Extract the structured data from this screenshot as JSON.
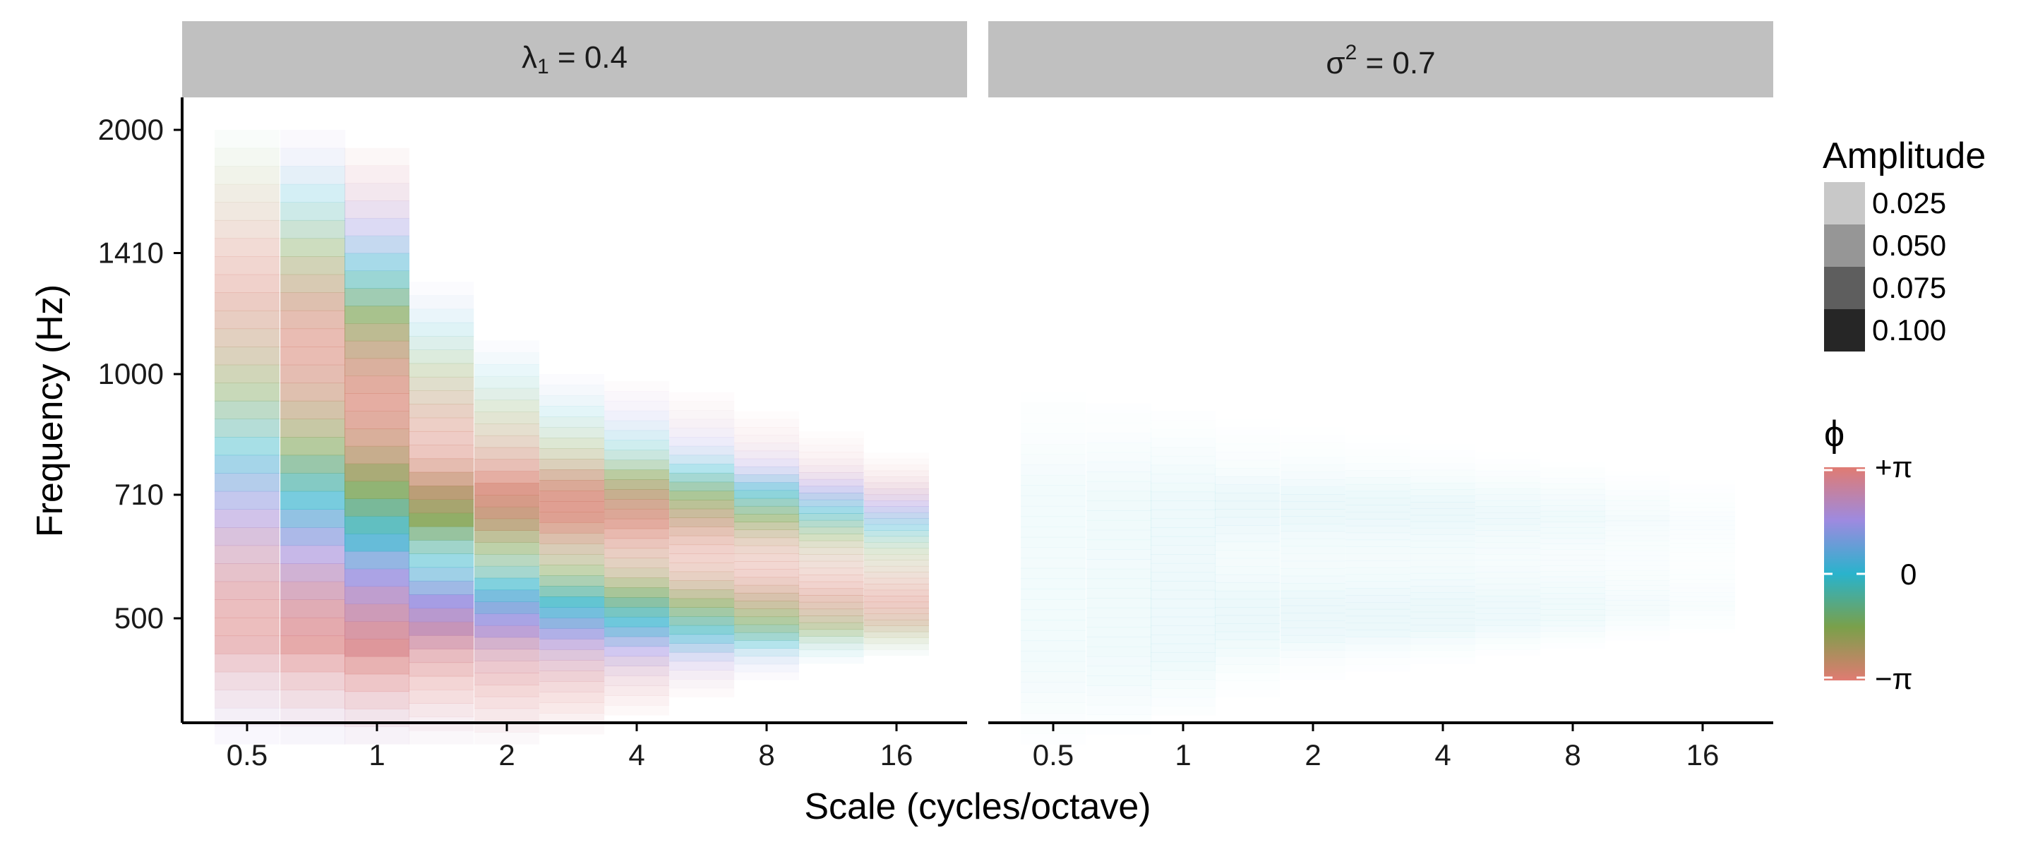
{
  "chart_data": {
    "type": "heatmap",
    "xlabel": "Scale (cycles/octave)",
    "ylabel": "Frequency (Hz)",
    "x_ticks": [
      "0.5",
      "1",
      "2",
      "4",
      "8",
      "16"
    ],
    "x_scale": "log2",
    "y_ticks": [
      "500",
      "710",
      "1000",
      "1410",
      "2000"
    ],
    "y_scale": "log2",
    "panels": [
      {
        "label_main": "λ",
        "label_sub": "1",
        "label_rest": " = 0.4",
        "columns": [
          {
            "scale": 0.5,
            "f_low": 350,
            "f_high": 2000,
            "amplitude": 0.05
          },
          {
            "scale": 0.71,
            "f_low": 350,
            "f_high": 2000,
            "amplitude": 0.065
          },
          {
            "scale": 1.0,
            "f_low": 350,
            "f_high": 1900,
            "amplitude": 0.08
          },
          {
            "scale": 1.41,
            "f_low": 350,
            "f_high": 1300,
            "amplitude": 0.085
          },
          {
            "scale": 2.0,
            "f_low": 350,
            "f_high": 1100,
            "amplitude": 0.08
          },
          {
            "scale": 2.83,
            "f_low": 360,
            "f_high": 1000,
            "amplitude": 0.075
          },
          {
            "scale": 4.0,
            "f_low": 380,
            "f_high": 980,
            "amplitude": 0.07
          },
          {
            "scale": 5.66,
            "f_low": 400,
            "f_high": 950,
            "amplitude": 0.06
          },
          {
            "scale": 8.0,
            "f_low": 420,
            "f_high": 900,
            "amplitude": 0.055
          },
          {
            "scale": 11.3,
            "f_low": 440,
            "f_high": 850,
            "amplitude": 0.045
          },
          {
            "scale": 16.0,
            "f_low": 450,
            "f_high": 800,
            "amplitude": 0.04
          }
        ]
      },
      {
        "label_main": "σ",
        "label_sup": "2",
        "label_rest": " = 0.7",
        "columns": [
          {
            "scale": 0.5,
            "f_low": 350,
            "f_high": 950,
            "amplitude": 0.006
          },
          {
            "scale": 0.71,
            "f_low": 360,
            "f_high": 920,
            "amplitude": 0.007
          },
          {
            "scale": 1.0,
            "f_low": 380,
            "f_high": 900,
            "amplitude": 0.008
          },
          {
            "scale": 1.41,
            "f_low": 400,
            "f_high": 880,
            "amplitude": 0.009
          },
          {
            "scale": 2.0,
            "f_low": 420,
            "f_high": 860,
            "amplitude": 0.009
          },
          {
            "scale": 2.83,
            "f_low": 430,
            "f_high": 840,
            "amplitude": 0.009
          },
          {
            "scale": 4.0,
            "f_low": 440,
            "f_high": 820,
            "amplitude": 0.009
          },
          {
            "scale": 5.66,
            "f_low": 450,
            "f_high": 800,
            "amplitude": 0.008
          },
          {
            "scale": 8.0,
            "f_low": 460,
            "f_high": 780,
            "amplitude": 0.007
          },
          {
            "scale": 11.3,
            "f_low": 470,
            "f_high": 760,
            "amplitude": 0.005
          },
          {
            "scale": 16.0,
            "f_low": 480,
            "f_high": 740,
            "amplitude": 0.003
          }
        ]
      }
    ],
    "legends": {
      "position": "right",
      "amplitude": {
        "title": "Amplitude",
        "entries": [
          {
            "label": "0.025",
            "color": "#c8c8c8"
          },
          {
            "label": "0.050",
            "color": "#969696"
          },
          {
            "label": "0.075",
            "color": "#5e5e5e"
          },
          {
            "label": "0.100",
            "color": "#262626"
          }
        ]
      },
      "phase": {
        "title": "ϕ",
        "labels": {
          "top": "+π",
          "middle": "0",
          "bottom": "−π"
        },
        "colors": [
          "#e07b72",
          "#9d8ae0",
          "#29b3cc",
          "#7aa04a",
          "#e07b72"
        ]
      }
    }
  }
}
